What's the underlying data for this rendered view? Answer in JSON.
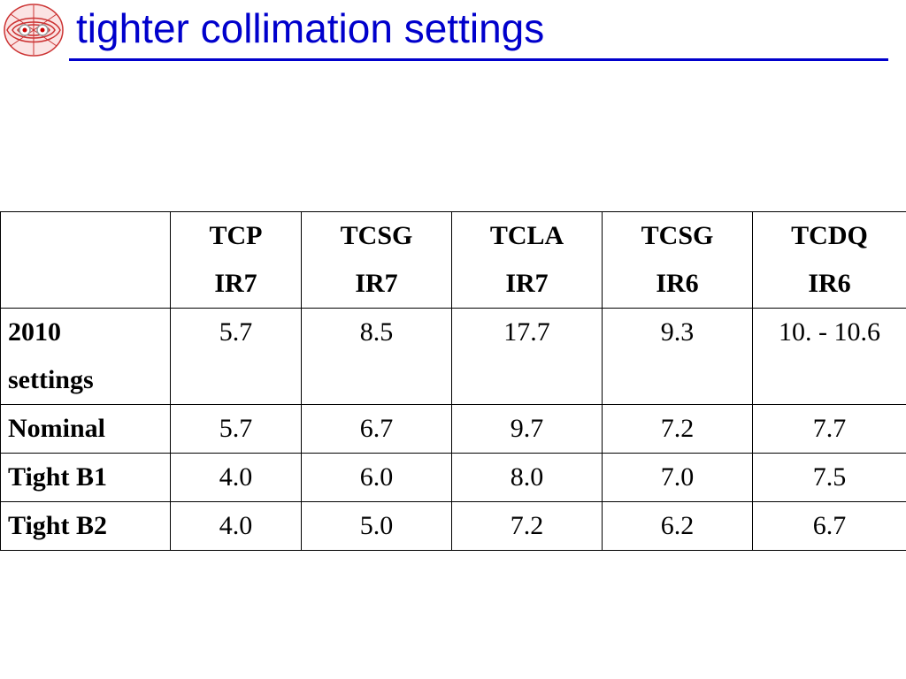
{
  "slide": {
    "title": "tighter collimation settings",
    "accent_color": "#0000cc",
    "logo": {
      "icon": "lhc-beam-logo-icon"
    }
  },
  "table": {
    "columns": [
      {
        "line1": "",
        "line2": ""
      },
      {
        "line1": "TCP",
        "line2": "IR7"
      },
      {
        "line1": "TCSG",
        "line2": "IR7"
      },
      {
        "line1": "TCLA",
        "line2": "IR7"
      },
      {
        "line1": "TCSG",
        "line2": "IR6"
      },
      {
        "line1": "TCDQ",
        "line2": "IR6"
      }
    ],
    "rows": [
      {
        "label_line1": "2010",
        "label_line2": "settings",
        "values": [
          "5.7",
          "8.5",
          "17.7",
          "9.3",
          "10. - 10.6"
        ]
      },
      {
        "label_line1": "Nominal",
        "label_line2": "",
        "values": [
          "5.7",
          "6.7",
          "9.7",
          "7.2",
          "7.7"
        ]
      },
      {
        "label_line1": "Tight B1",
        "label_line2": "",
        "values": [
          "4.0",
          "6.0",
          "8.0",
          "7.0",
          "7.5"
        ]
      },
      {
        "label_line1": "Tight B2",
        "label_line2": "",
        "values": [
          "4.0",
          "5.0",
          "7.2",
          "6.2",
          "6.7"
        ]
      }
    ]
  }
}
